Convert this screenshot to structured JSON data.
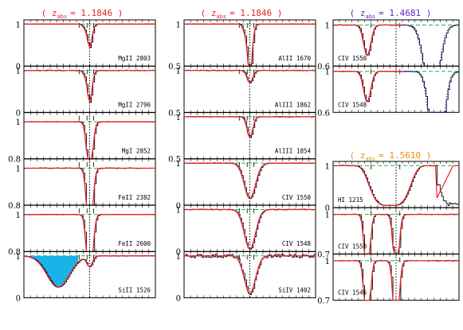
{
  "columns": [
    {
      "title": "( z_abs = 1.1846 )",
      "title_prefix": "( z",
      "title_sub": "abs",
      "title_value": "= 1.1846 )",
      "title_color": "#e8222a",
      "panels": [
        {
          "label": "MgII 2803",
          "ylim": [
            0,
            1.1
          ],
          "ticks": [
            "1",
            "0"
          ],
          "type": "narrow",
          "depth": 0.55,
          "ticks_top": [
            1,
            2,
            3
          ]
        },
        {
          "label": "MgII 2796",
          "ylim": [
            0,
            1.1
          ],
          "ticks": [
            "1",
            "0"
          ],
          "type": "narrow",
          "depth": 0.75,
          "ticks_top": [
            1,
            2,
            3
          ]
        },
        {
          "label": "MgI 2852",
          "ylim": [
            0.8,
            1.05
          ],
          "ticks": [
            "1",
            "0.8"
          ],
          "type": "weak",
          "depth": 0.3,
          "ticks_top": [
            1,
            2,
            3
          ]
        },
        {
          "label": "FeII 2382",
          "ylim": [
            0.8,
            1.05
          ],
          "ticks": [
            "1",
            "0.8"
          ],
          "type": "weak",
          "depth": 0.4,
          "ticks_top": [
            1,
            2,
            3
          ]
        },
        {
          "label": "FeII 2600",
          "ylim": [
            0.8,
            1.05
          ],
          "ticks": [
            "1",
            "0.8"
          ],
          "type": "weak",
          "depth": 0.45,
          "ticks_top": [
            1,
            2,
            3
          ]
        },
        {
          "label": "SiII 1526",
          "ylim": [
            0,
            1.1
          ],
          "ticks": [
            "1",
            "0"
          ],
          "type": "blend-cyan",
          "depth": 0.2,
          "ticks_top": [
            1,
            2,
            3
          ]
        }
      ]
    },
    {
      "title": "( z_abs = 1.1846 )",
      "title_prefix": "( z",
      "title_sub": "abs",
      "title_value": "= 1.1846 )",
      "title_color": "#e8222a",
      "panels": [
        {
          "label": "AlII 1670",
          "ylim": [
            0.5,
            1.05
          ],
          "ticks": [
            "1",
            "0.5"
          ],
          "type": "narrow",
          "depth": 0.6,
          "ticks_top": [
            1,
            2,
            3
          ]
        },
        {
          "label": "AlIII 1862",
          "ylim": [
            0.5,
            1.05
          ],
          "ticks": [
            "1",
            "0.5"
          ],
          "type": "weak-cyan",
          "depth": 0.15,
          "ticks_top": [
            1,
            2,
            3
          ]
        },
        {
          "label": "AlIII 1854",
          "ylim": [
            0.5,
            1.05
          ],
          "ticks": [
            "1",
            "0.5"
          ],
          "type": "weak",
          "depth": 0.25,
          "ticks_top": [
            1,
            2,
            3
          ]
        },
        {
          "label": "CIV 1550",
          "ylim": [
            0,
            1.1
          ],
          "ticks": [
            "1",
            "0"
          ],
          "type": "broad",
          "depth": 0.85,
          "ticks_top": [
            1,
            2,
            3
          ]
        },
        {
          "label": "CIV 1548",
          "ylim": [
            0,
            1.1
          ],
          "ticks": [
            "1",
            "0"
          ],
          "type": "broad",
          "depth": 0.95,
          "ticks_top": [
            1,
            2,
            3
          ]
        },
        {
          "label": "SiIV 1402",
          "ylim": [
            0,
            1.1
          ],
          "ticks": [
            "1",
            "0"
          ],
          "type": "noisy-broad",
          "depth": 0.9,
          "ticks_top": [
            1,
            2,
            3
          ]
        }
      ]
    },
    {
      "title": "( z_abs = 1.4681 )",
      "title_prefix": "( z",
      "title_sub": "abs",
      "title_value": "= 1.4681 )",
      "title_color": "#6a1fd0",
      "panels": [
        {
          "label": "CIV 1550",
          "ylim": [
            0.6,
            1.05
          ],
          "ticks": [
            "1",
            "0.6"
          ],
          "type": "civ-blue",
          "depth": 0.4,
          "ticks_top": [
            1,
            2
          ]
        },
        {
          "label": "CIV 1548",
          "ylim": [
            0.6,
            1.05
          ],
          "ticks": [
            "1",
            "0.6"
          ],
          "type": "civ-blue2",
          "depth": 0.5,
          "ticks_top": [
            1,
            2
          ]
        }
      ]
    },
    {
      "title": "( z_abs = 1.5610 )",
      "title_prefix": "( z",
      "title_sub": "abs",
      "title_value": "= 1.5610 )",
      "title_color": "#f08a10",
      "panels": [
        {
          "label": "HI 1215",
          "ylim": [
            0,
            1.1
          ],
          "ticks": [
            "1",
            "0"
          ],
          "type": "lya",
          "depth": 0.95,
          "ticks_top": [
            1,
            2
          ]
        },
        {
          "label": "CIV 1550",
          "ylim": [
            0.7,
            1.05
          ],
          "ticks": [
            "1",
            "0.7"
          ],
          "type": "double",
          "depth": 0.5,
          "ticks_top": [
            1,
            2
          ]
        },
        {
          "label": "CIV 1546",
          "ylim": [
            0.7,
            1.05
          ],
          "ticks": [
            "1",
            "0.7"
          ],
          "type": "double",
          "depth": 0.6,
          "ticks_top": [
            1,
            2
          ]
        }
      ]
    }
  ],
  "chart_data": {
    "type": "line",
    "title": "",
    "xlabel": "",
    "ylabel": "",
    "grid": false,
    "series": [
      {
        "name": "data",
        "color": "#000000"
      },
      {
        "name": "model",
        "color": "#e8222a"
      },
      {
        "name": "continuum",
        "color": "#22b04a"
      },
      {
        "name": "fill",
        "color": "#18b4e8"
      }
    ]
  }
}
